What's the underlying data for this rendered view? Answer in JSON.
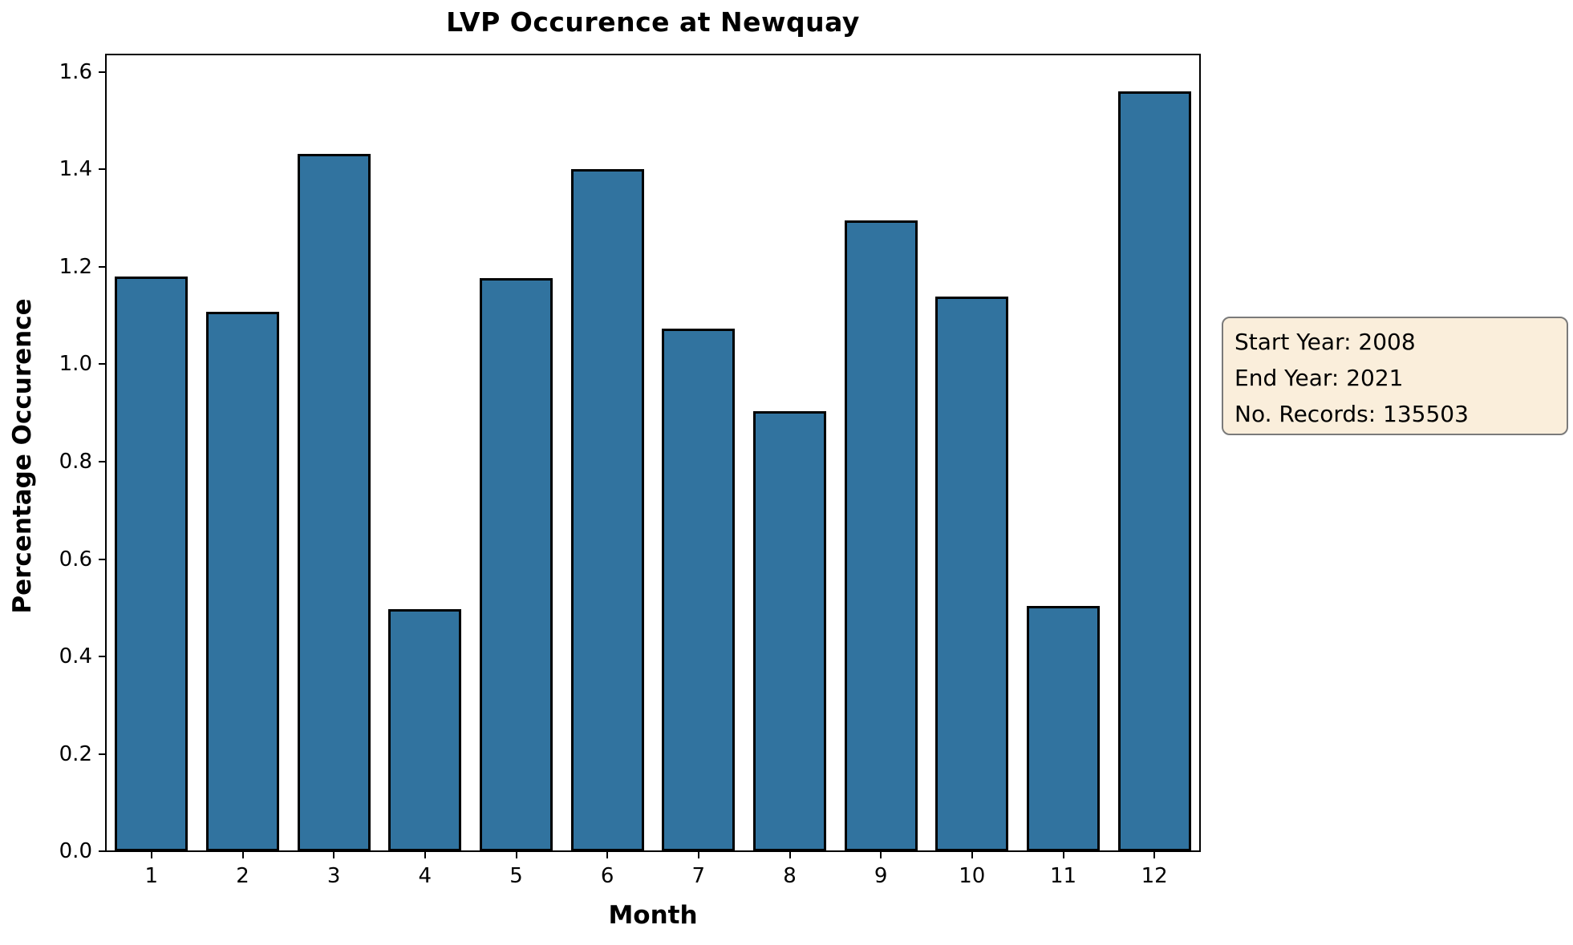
{
  "chart_data": {
    "type": "bar",
    "title": "LVP Occurence at Newquay",
    "xlabel": "Month",
    "ylabel": "Percentage Occurence",
    "categories": [
      "1",
      "2",
      "3",
      "4",
      "5",
      "6",
      "7",
      "8",
      "9",
      "10",
      "11",
      "12"
    ],
    "values": [
      1.18,
      1.108,
      1.432,
      0.497,
      1.177,
      1.401,
      1.073,
      0.904,
      1.295,
      1.139,
      0.504,
      1.56
    ],
    "ylim": [
      0.0,
      1.636
    ],
    "y_tick_labels": [
      "0.0",
      "0.2",
      "0.4",
      "0.6",
      "0.8",
      "1.0",
      "1.2",
      "1.4",
      "1.6"
    ],
    "y_tick_values": [
      0.0,
      0.2,
      0.4,
      0.6,
      0.8,
      1.0,
      1.2,
      1.4,
      1.6
    ],
    "grid": false,
    "bar_color": "#31739F",
    "bar_edge_color": "#000000"
  },
  "annotation": {
    "lines": [
      "Start Year: 2008",
      "End Year: 2021",
      "No. Records: 135503"
    ],
    "background_color": "#FAEEDB",
    "border_color": "#7A7A7A"
  }
}
